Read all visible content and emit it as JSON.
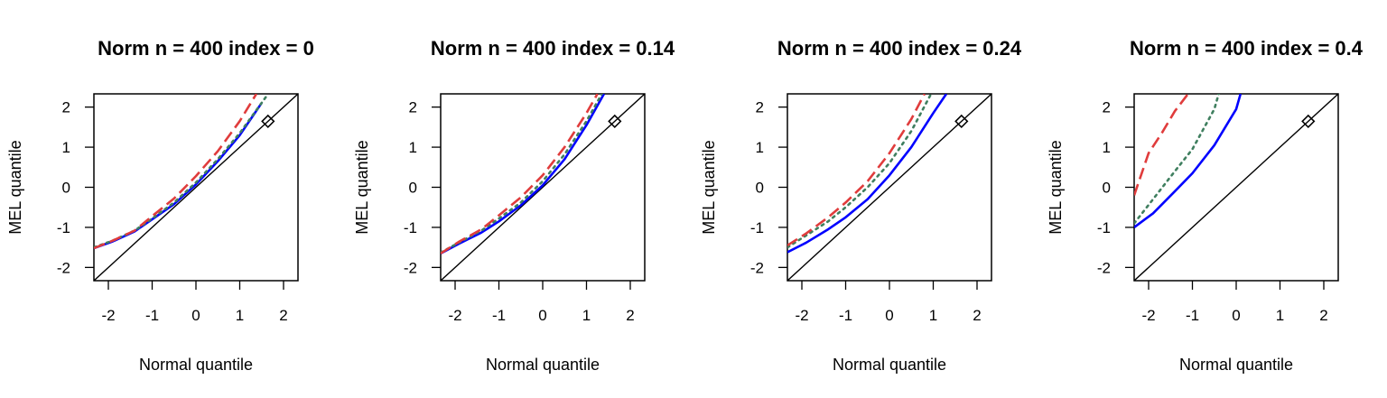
{
  "chart_data": [
    {
      "type": "line",
      "title": "Norm n = 400 index = 0",
      "xlabel": "Normal quantile",
      "ylabel": "MEL quantile",
      "xlim": [
        -2.33,
        2.33
      ],
      "ylim": [
        -2.33,
        2.33
      ],
      "xticks": [
        -2,
        -1,
        0,
        1,
        2
      ],
      "yticks": [
        -2,
        -1,
        0,
        1,
        2
      ],
      "reference_line": "y = x",
      "marker": {
        "shape": "diamond",
        "x": 1.645,
        "y": 1.645
      },
      "series": [
        {
          "color": "#0000ff",
          "style": "solid",
          "x": [
            -2.33,
            -1.9,
            -1.4,
            -1.0,
            -0.5,
            0,
            0.5,
            1.0,
            1.5
          ],
          "y": [
            -1.52,
            -1.35,
            -1.1,
            -0.8,
            -0.42,
            0.07,
            0.65,
            1.3,
            2.1
          ]
        },
        {
          "color": "#3f7f5f",
          "style": "dotted",
          "x": [
            -2.33,
            -1.9,
            -1.4,
            -1.0,
            -0.5,
            0,
            0.5,
            1.0,
            1.65
          ],
          "y": [
            -1.5,
            -1.33,
            -1.08,
            -0.78,
            -0.38,
            0.12,
            0.7,
            1.35,
            2.33
          ]
        },
        {
          "color": "#e03c3c",
          "style": "dashed",
          "x": [
            -2.33,
            -1.9,
            -1.4,
            -1.0,
            -0.5,
            0,
            0.5,
            1.0,
            1.38
          ],
          "y": [
            -1.52,
            -1.33,
            -1.08,
            -0.72,
            -0.28,
            0.28,
            0.9,
            1.65,
            2.33
          ]
        }
      ]
    },
    {
      "type": "line",
      "title": "Norm n = 400 index = 0.14",
      "xlabel": "Normal quantile",
      "ylabel": "MEL quantile",
      "xlim": [
        -2.33,
        2.33
      ],
      "ylim": [
        -2.33,
        2.33
      ],
      "xticks": [
        -2,
        -1,
        0,
        1,
        2
      ],
      "yticks": [
        -2,
        -1,
        0,
        1,
        2
      ],
      "reference_line": "y = x",
      "marker": {
        "shape": "diamond",
        "x": 1.645,
        "y": 1.645
      },
      "series": [
        {
          "color": "#0000ff",
          "style": "solid",
          "x": [
            -2.33,
            -1.9,
            -1.4,
            -1.0,
            -0.5,
            0,
            0.5,
            1.0,
            1.4
          ],
          "y": [
            -1.65,
            -1.4,
            -1.13,
            -0.85,
            -0.45,
            0.05,
            0.7,
            1.55,
            2.33
          ]
        },
        {
          "color": "#3f7f5f",
          "style": "dotted",
          "x": [
            -2.33,
            -1.9,
            -1.4,
            -1.0,
            -0.5,
            0,
            0.5,
            1.0,
            1.35
          ],
          "y": [
            -1.63,
            -1.37,
            -1.08,
            -0.78,
            -0.38,
            0.15,
            0.82,
            1.65,
            2.33
          ]
        },
        {
          "color": "#e03c3c",
          "style": "dashed",
          "x": [
            -2.33,
            -1.9,
            -1.4,
            -1.0,
            -0.5,
            0,
            0.5,
            1.0,
            1.25
          ],
          "y": [
            -1.65,
            -1.35,
            -1.05,
            -0.7,
            -0.25,
            0.3,
            1.0,
            1.85,
            2.33
          ]
        }
      ]
    },
    {
      "type": "line",
      "title": "Norm n = 400 index = 0.24",
      "xlabel": "Normal quantile",
      "ylabel": "MEL quantile",
      "xlim": [
        -2.33,
        2.33
      ],
      "ylim": [
        -2.33,
        2.33
      ],
      "xticks": [
        -2,
        -1,
        0,
        1,
        2
      ],
      "yticks": [
        -2,
        -1,
        0,
        1,
        2
      ],
      "reference_line": "y = x",
      "marker": {
        "shape": "diamond",
        "x": 1.645,
        "y": 1.645
      },
      "series": [
        {
          "color": "#0000ff",
          "style": "solid",
          "x": [
            -2.33,
            -1.9,
            -1.4,
            -1.0,
            -0.5,
            0,
            0.5,
            1.0,
            1.3
          ],
          "y": [
            -1.62,
            -1.38,
            -1.05,
            -0.75,
            -0.3,
            0.3,
            1.0,
            1.85,
            2.33
          ]
        },
        {
          "color": "#3f7f5f",
          "style": "dotted",
          "x": [
            -2.33,
            -1.9,
            -1.4,
            -1.0,
            -0.5,
            0,
            0.5,
            0.95
          ],
          "y": [
            -1.5,
            -1.2,
            -0.85,
            -0.5,
            0.0,
            0.6,
            1.4,
            2.33
          ]
        },
        {
          "color": "#e03c3c",
          "style": "dashed",
          "x": [
            -2.33,
            -1.9,
            -1.4,
            -1.0,
            -0.5,
            0,
            0.5,
            0.8
          ],
          "y": [
            -1.45,
            -1.15,
            -0.75,
            -0.38,
            0.15,
            0.85,
            1.7,
            2.33
          ]
        }
      ]
    },
    {
      "type": "line",
      "title": "Norm n = 400 index = 0.4",
      "xlabel": "Normal quantile",
      "ylabel": "MEL quantile",
      "xlim": [
        -2.33,
        2.33
      ],
      "ylim": [
        -2.33,
        2.33
      ],
      "xticks": [
        -2,
        -1,
        0,
        1,
        2
      ],
      "yticks": [
        -2,
        -1,
        0,
        1,
        2
      ],
      "reference_line": "y = x",
      "marker": {
        "shape": "diamond",
        "x": 1.645,
        "y": 1.645
      },
      "series": [
        {
          "color": "#0000ff",
          "style": "solid",
          "x": [
            -2.33,
            -1.9,
            -1.4,
            -1.0,
            -0.5,
            0,
            0.1
          ],
          "y": [
            -1.0,
            -0.65,
            -0.1,
            0.35,
            1.05,
            1.95,
            2.33
          ]
        },
        {
          "color": "#3f7f5f",
          "style": "dotted",
          "x": [
            -2.33,
            -1.9,
            -1.4,
            -1.0,
            -0.5,
            -0.4
          ],
          "y": [
            -0.9,
            -0.3,
            0.4,
            0.95,
            1.95,
            2.33
          ]
        },
        {
          "color": "#e03c3c",
          "style": "dashed",
          "x": [
            -2.33,
            -2.0,
            -1.7,
            -1.4,
            -1.1
          ],
          "y": [
            -0.2,
            0.85,
            1.35,
            1.9,
            2.33
          ]
        }
      ]
    }
  ]
}
